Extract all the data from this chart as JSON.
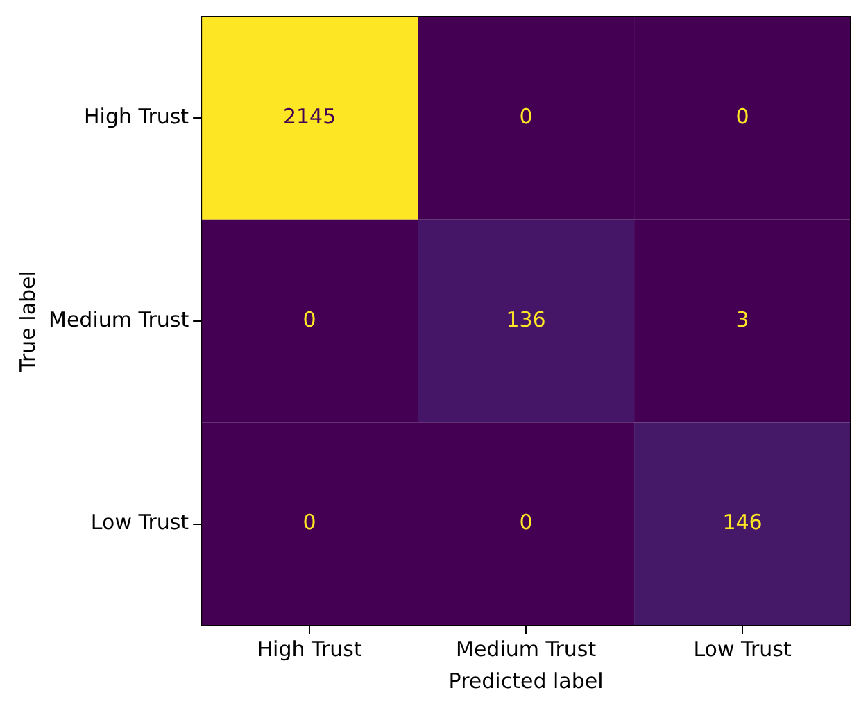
{
  "chart_data": {
    "type": "heatmap",
    "xlabel": "Predicted label",
    "ylabel": "True label",
    "categories": [
      "High Trust",
      "Medium Trust",
      "Low Trust"
    ],
    "y_categories": [
      "High Trust",
      "Medium Trust",
      "Low Trust"
    ],
    "cells": [
      [
        2145,
        0,
        0
      ],
      [
        0,
        136,
        3
      ],
      [
        0,
        0,
        146
      ]
    ],
    "data_labels": true,
    "grid": false
  }
}
